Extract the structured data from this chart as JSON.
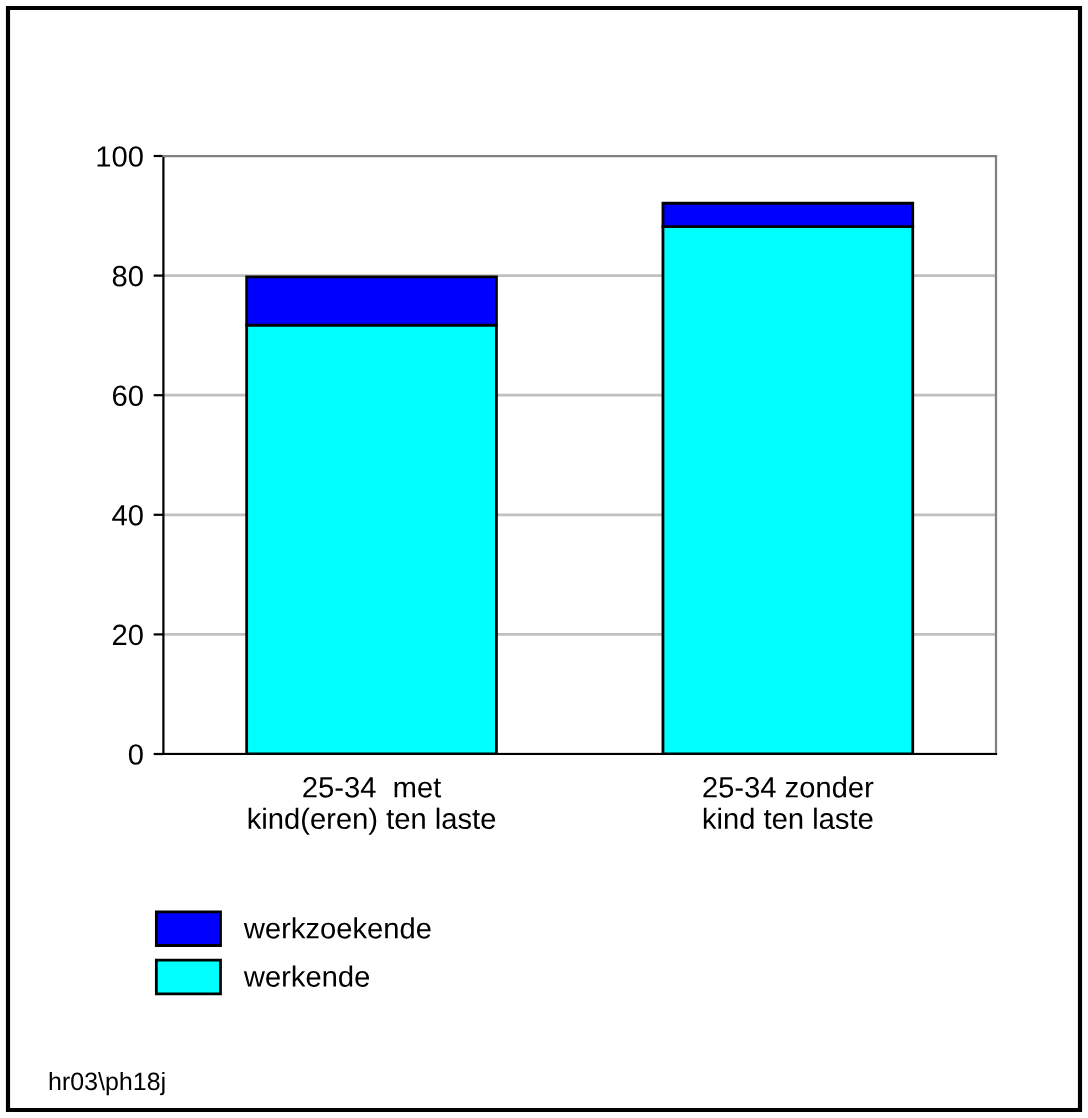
{
  "chart_data": {
    "type": "bar",
    "stacked": true,
    "categories": [
      "25-34  met\nkind(eren) ten laste",
      "25-34 zonder\nkind ten laste"
    ],
    "series": [
      {
        "name": "werkende",
        "color": "#00ffff",
        "values": [
          71.7,
          88.2
        ]
      },
      {
        "name": "werkzoekende",
        "color": "#0000ff",
        "values": [
          8.1,
          3.9
        ]
      }
    ],
    "ylim": [
      0,
      100
    ],
    "yticks": [
      0,
      20,
      40,
      60,
      80,
      100
    ],
    "grid": "y",
    "legend": "bottom left",
    "annotations": [
      "hr03\\ph18j"
    ]
  }
}
